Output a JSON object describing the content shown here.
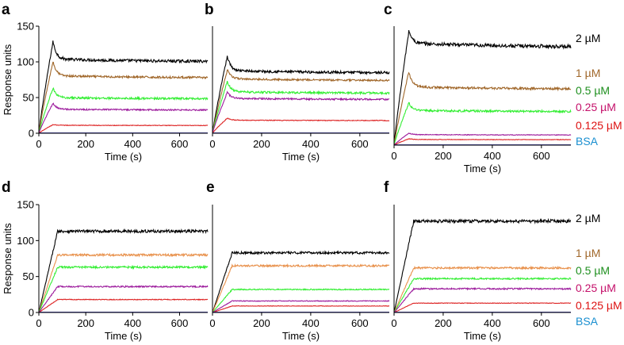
{
  "figure": {
    "ylabel_text": "Response units",
    "xlabel_text": "Time (s)"
  },
  "chart_data": [
    {
      "type": "line",
      "panel": "a",
      "xlabel": "Time (s)",
      "ylabel": "Response units",
      "xlim": [
        0,
        720
      ],
      "ylim": [
        0,
        150
      ],
      "xticks": [
        0,
        200,
        400,
        600
      ],
      "yticks": [
        0,
        50,
        100,
        150
      ],
      "injection_end_s": 60,
      "series": [
        {
          "name": "2 µM",
          "color": "#000000",
          "peak": 128,
          "plateau": 102,
          "shape": "spike",
          "noise": 2.0
        },
        {
          "name": "1 µM",
          "color": "#a0672a",
          "peak": 100,
          "plateau": 79,
          "shape": "spike",
          "noise": 1.4
        },
        {
          "name": "0.5 µM",
          "color": "#33ee33",
          "peak": 63,
          "plateau": 49,
          "shape": "spike",
          "noise": 1.4
        },
        {
          "name": "0.25 µM",
          "color": "#9c1a9c",
          "peak": 42,
          "plateau": 33,
          "shape": "spike",
          "noise": 1.0
        },
        {
          "name": "0.125 µM",
          "color": "#dd2222",
          "peak": 12,
          "plateau": 11,
          "shape": "spike",
          "noise": 0.4
        },
        {
          "name": "BSA",
          "color": "#1a1aaa",
          "peak": 0,
          "plateau": 0,
          "shape": "flat",
          "noise": 0
        }
      ]
    },
    {
      "type": "line",
      "panel": "b",
      "xlabel": "Time (s)",
      "ylabel": "",
      "xlim": [
        0,
        720
      ],
      "ylim": [
        0,
        150
      ],
      "xticks": [
        0,
        200,
        400,
        600
      ],
      "yticks": [],
      "injection_end_s": 60,
      "series": [
        {
          "name": "2 µM",
          "color": "#000000",
          "peak": 107,
          "plateau": 86,
          "shape": "spike",
          "noise": 1.8
        },
        {
          "name": "1 µM",
          "color": "#a0672a",
          "peak": 88,
          "plateau": 75,
          "shape": "spike",
          "noise": 1.2
        },
        {
          "name": "0.5 µM",
          "color": "#33ee33",
          "peak": 72,
          "plateau": 57,
          "shape": "spike",
          "noise": 1.4
        },
        {
          "name": "0.25 µM",
          "color": "#9c1a9c",
          "peak": 57,
          "plateau": 48,
          "shape": "spike",
          "noise": 1.2
        },
        {
          "name": "0.125 µM",
          "color": "#dd2222",
          "peak": 21,
          "plateau": 18,
          "shape": "spike",
          "noise": 0.5
        },
        {
          "name": "BSA",
          "color": "#1a1aaa",
          "peak": 0,
          "plateau": 0,
          "shape": "flat",
          "noise": 0
        }
      ]
    },
    {
      "type": "line",
      "panel": "c",
      "xlabel": "Time (s)",
      "ylabel": "",
      "xlim": [
        0,
        720
      ],
      "ylim": [
        0,
        150
      ],
      "xticks": [
        0,
        200,
        400,
        600
      ],
      "yticks": [],
      "injection_end_s": 60,
      "series": [
        {
          "name": "2 µM",
          "color": "#000000",
          "peak": 143,
          "plateau": 126,
          "shape": "spike",
          "noise": 2.2
        },
        {
          "name": "1 µM",
          "color": "#a0672a",
          "peak": 92,
          "plateau": 72,
          "shape": "spike",
          "noise": 1.4
        },
        {
          "name": "0.5 µM",
          "color": "#33ee33",
          "peak": 53,
          "plateau": 43,
          "shape": "spike",
          "noise": 1.3
        },
        {
          "name": "0.25 µM",
          "color": "#9c1a9c",
          "peak": 15,
          "plateau": 13,
          "shape": "spike",
          "noise": 0.4
        },
        {
          "name": "0.125 µM",
          "color": "#dd2222",
          "peak": 8,
          "plateau": 7,
          "shape": "spike",
          "noise": 0.3
        },
        {
          "name": "BSA",
          "color": "#1a1aaa",
          "peak": 0,
          "plateau": 0,
          "shape": "flat",
          "noise": 0
        }
      ]
    },
    {
      "type": "line",
      "panel": "d",
      "xlabel": "Time (s)",
      "ylabel": "Response units",
      "xlim": [
        0,
        720
      ],
      "ylim": [
        0,
        150
      ],
      "xticks": [
        0,
        200,
        400,
        600
      ],
      "yticks": [
        0,
        50,
        100,
        150
      ],
      "injection_end_s": 80,
      "series": [
        {
          "name": "2 µM",
          "color": "#000000",
          "peak": 112,
          "plateau": 113,
          "shape": "rise",
          "noise": 2.0
        },
        {
          "name": "1 µM",
          "color": "#e8904a",
          "peak": 80,
          "plateau": 80,
          "shape": "rise",
          "noise": 1.5
        },
        {
          "name": "0.5 µM",
          "color": "#33ee33",
          "peak": 62,
          "plateau": 63,
          "shape": "rise",
          "noise": 1.4
        },
        {
          "name": "0.25 µM",
          "color": "#9c1a9c",
          "peak": 35,
          "plateau": 36,
          "shape": "rise",
          "noise": 1.0
        },
        {
          "name": "0.125 µM",
          "color": "#dd2222",
          "peak": 17,
          "plateau": 18,
          "shape": "rise",
          "noise": 0.5
        },
        {
          "name": "BSA",
          "color": "#1a1aaa",
          "peak": 0,
          "plateau": 0,
          "shape": "flat",
          "noise": 0
        }
      ]
    },
    {
      "type": "line",
      "panel": "e",
      "xlabel": "Time (s)",
      "ylabel": "",
      "xlim": [
        0,
        720
      ],
      "ylim": [
        0,
        150
      ],
      "xticks": [
        0,
        200,
        400,
        600
      ],
      "yticks": [],
      "injection_end_s": 80,
      "series": [
        {
          "name": "2 µM",
          "color": "#000000",
          "peak": 82,
          "plateau": 83,
          "shape": "rise",
          "noise": 1.6
        },
        {
          "name": "1 µM",
          "color": "#e8904a",
          "peak": 64,
          "plateau": 65,
          "shape": "rise",
          "noise": 1.3
        },
        {
          "name": "0.5 µM",
          "color": "#33ee33",
          "peak": 32,
          "plateau": 32,
          "shape": "rise",
          "noise": 0.8
        },
        {
          "name": "0.25 µM",
          "color": "#9c1a9c",
          "peak": 16,
          "plateau": 16,
          "shape": "rise",
          "noise": 0.5
        },
        {
          "name": "0.125 µM",
          "color": "#dd2222",
          "peak": 9,
          "plateau": 9,
          "shape": "rise",
          "noise": 0.3
        },
        {
          "name": "BSA",
          "color": "#1a1aaa",
          "peak": 0,
          "plateau": 0,
          "shape": "flat",
          "noise": 0
        }
      ]
    },
    {
      "type": "line",
      "panel": "f",
      "xlabel": "Time (s)",
      "ylabel": "",
      "xlim": [
        0,
        720
      ],
      "ylim": [
        0,
        150
      ],
      "xticks": [
        0,
        200,
        400,
        600
      ],
      "yticks": [],
      "injection_end_s": 80,
      "series": [
        {
          "name": "2 µM",
          "color": "#000000",
          "peak": 126,
          "plateau": 127,
          "shape": "rise",
          "noise": 2.2
        },
        {
          "name": "1 µM",
          "color": "#e8904a",
          "peak": 62,
          "plateau": 62,
          "shape": "rise",
          "noise": 1.3
        },
        {
          "name": "0.5 µM",
          "color": "#33ee33",
          "peak": 47,
          "plateau": 47,
          "shape": "rise",
          "noise": 1.1
        },
        {
          "name": "0.25 µM",
          "color": "#9c1a9c",
          "peak": 33,
          "plateau": 33,
          "shape": "rise",
          "noise": 1.0
        },
        {
          "name": "0.125 µM",
          "color": "#dd2222",
          "peak": 13,
          "plateau": 13,
          "shape": "rise",
          "noise": 0.4
        },
        {
          "name": "BSA",
          "color": "#1a1aaa",
          "peak": 0,
          "plateau": 0,
          "shape": "flat",
          "noise": 0
        }
      ]
    }
  ],
  "legend_top": [
    {
      "label": "2 µM",
      "color": "#000000"
    },
    {
      "label": "1 µM",
      "color": "#a0672a"
    },
    {
      "label": "0.5 µM",
      "color": "#1e8f1e"
    },
    {
      "label": "0.25 µM",
      "color": "#c4106a"
    },
    {
      "label": "0.125 µM",
      "color": "#dd1111"
    },
    {
      "label": "BSA",
      "color": "#1a8fd0"
    }
  ],
  "legend_bottom": [
    {
      "label": "2 µM",
      "color": "#000000"
    },
    {
      "label": "1 µM",
      "color": "#a0672a"
    },
    {
      "label": "0.5 µM",
      "color": "#1e8f1e"
    },
    {
      "label": "0.25 µM",
      "color": "#c4106a"
    },
    {
      "label": "0.125 µM",
      "color": "#dd1111"
    },
    {
      "label": "BSA",
      "color": "#1a8fd0"
    }
  ]
}
